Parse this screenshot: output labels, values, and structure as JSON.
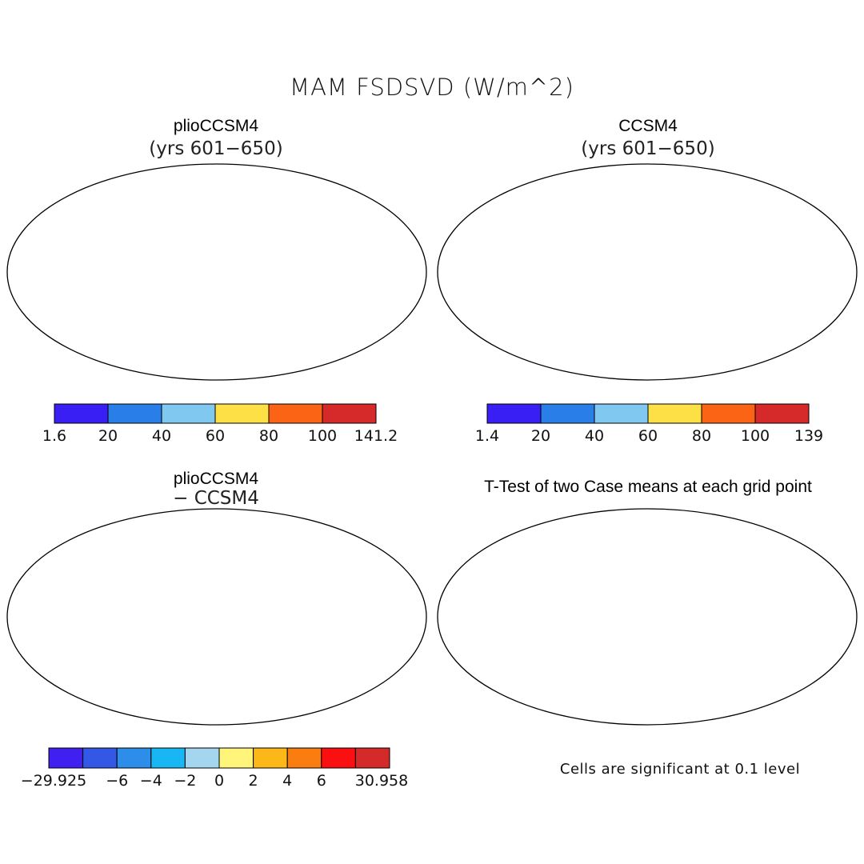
{
  "title": "MAM FSDSVD (W/m^2)",
  "panels": {
    "top_left": {
      "title": "plioCCSM4",
      "subtitle": "(yrs 601−650)"
    },
    "top_right": {
      "title": "CCSM4",
      "subtitle": "(yrs 601−650)"
    },
    "bottom_left": {
      "title": "plioCCSM4",
      "subtitle": "− CCSM4"
    },
    "bottom_right": {
      "title": "T-Test of two Case means at each grid point",
      "note": "Cells are significant at 0.1 level"
    }
  },
  "colorbars": {
    "top_left": {
      "colors": [
        "#3a1ff5",
        "#2a7ee8",
        "#80c8f0",
        "#fde046",
        "#fa6414",
        "#d62a2a"
      ],
      "labels": [
        "1.6",
        "20",
        "40",
        "60",
        "80",
        "100",
        "141.2"
      ]
    },
    "top_right": {
      "colors": [
        "#3a1ff5",
        "#2a7ee8",
        "#80c8f0",
        "#fde046",
        "#fa6414",
        "#d62a2a"
      ],
      "labels": [
        "1.4",
        "20",
        "40",
        "60",
        "80",
        "100",
        "139"
      ]
    },
    "bottom_left": {
      "colors": [
        "#4020f0",
        "#3458e6",
        "#2c8ee8",
        "#18b6f2",
        "#a4d6ef",
        "#fff57a",
        "#fbb818",
        "#fa7d10",
        "#fa1010",
        "#d42a2a"
      ],
      "labels": [
        "−29.925",
        "−6",
        "−4",
        "−2",
        "0",
        "2",
        "4",
        "6",
        "30.958"
      ]
    }
  },
  "palette": {
    "antarctica": "#3a1ff5",
    "land_hot": "#d62a2a",
    "land_warm": "#fa6414",
    "land_mild": "#fde046",
    "land_cool": "#80c8f0",
    "diff_antarctica": "#a4d6ef",
    "significant": "#ff0000"
  }
}
